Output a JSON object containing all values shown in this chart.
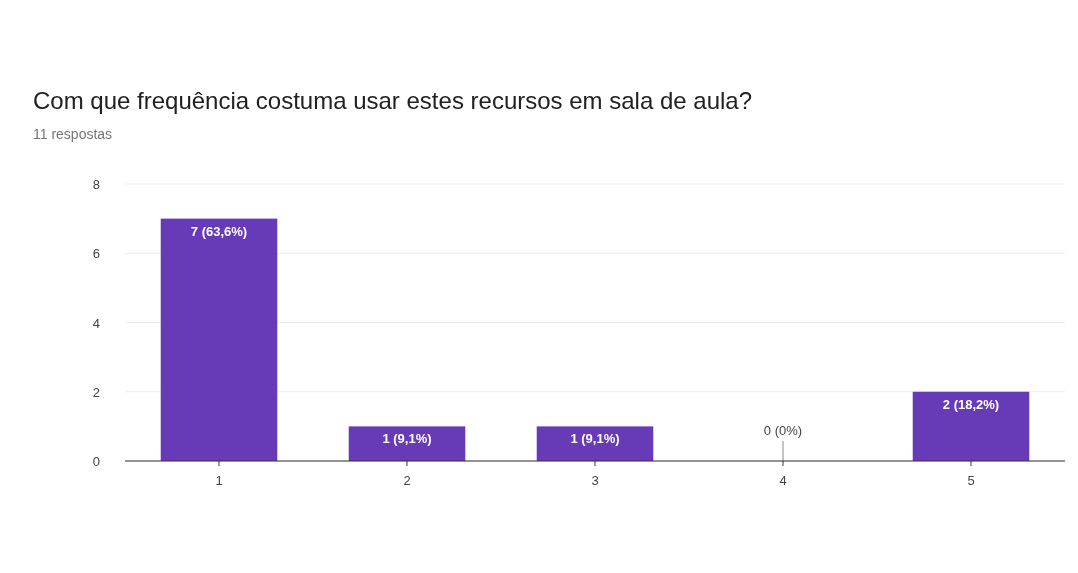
{
  "chart_data": {
    "type": "bar",
    "title": "Com que frequência costuma usar estes recursos em sala de aula?",
    "subtitle": "11 respostas",
    "categories": [
      "1",
      "2",
      "3",
      "4",
      "5"
    ],
    "values": [
      7,
      1,
      1,
      0,
      2
    ],
    "value_labels": [
      "7 (63,6%)",
      "1 (9,1%)",
      "1 (9,1%)",
      "0 (0%)",
      "2 (18,2%)"
    ],
    "color": "#673ab7",
    "ylim": [
      0,
      8
    ],
    "yticks": [
      0,
      2,
      4,
      6,
      8
    ],
    "grid": "y"
  }
}
